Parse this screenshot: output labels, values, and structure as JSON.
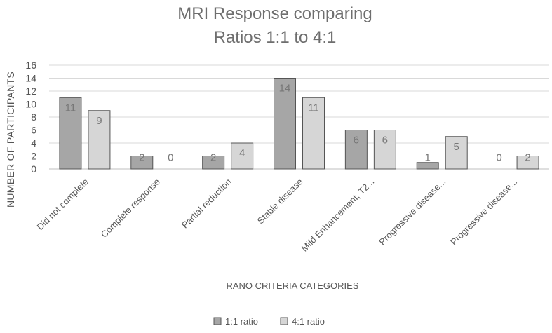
{
  "chart_data": {
    "type": "bar",
    "title_lines": [
      "MRI Response comparing",
      "Ratios 1:1 to 4:1"
    ],
    "xlabel": "RANO  CRITERIA CATEGORIES",
    "ylabel": "NUMBER OF PARTICIPANTS",
    "ylim": [
      0,
      16
    ],
    "yticks": [
      0,
      2,
      4,
      6,
      8,
      10,
      12,
      14,
      16
    ],
    "grid": true,
    "legend_position": "bottom",
    "categories": [
      "Did not complete",
      "Complete response",
      "Partial reduction",
      "Stable disease",
      "Mild Enhancement, T2...",
      "Progressive disease...",
      "Progressive disease..."
    ],
    "series": [
      {
        "name": "1:1 ratio",
        "color": "#a6a6a6",
        "values": [
          11,
          2,
          2,
          14,
          6,
          1,
          0
        ]
      },
      {
        "name": "4:1 ratio",
        "color": "#d6d6d6",
        "values": [
          9,
          0,
          4,
          11,
          6,
          5,
          2
        ]
      }
    ]
  }
}
